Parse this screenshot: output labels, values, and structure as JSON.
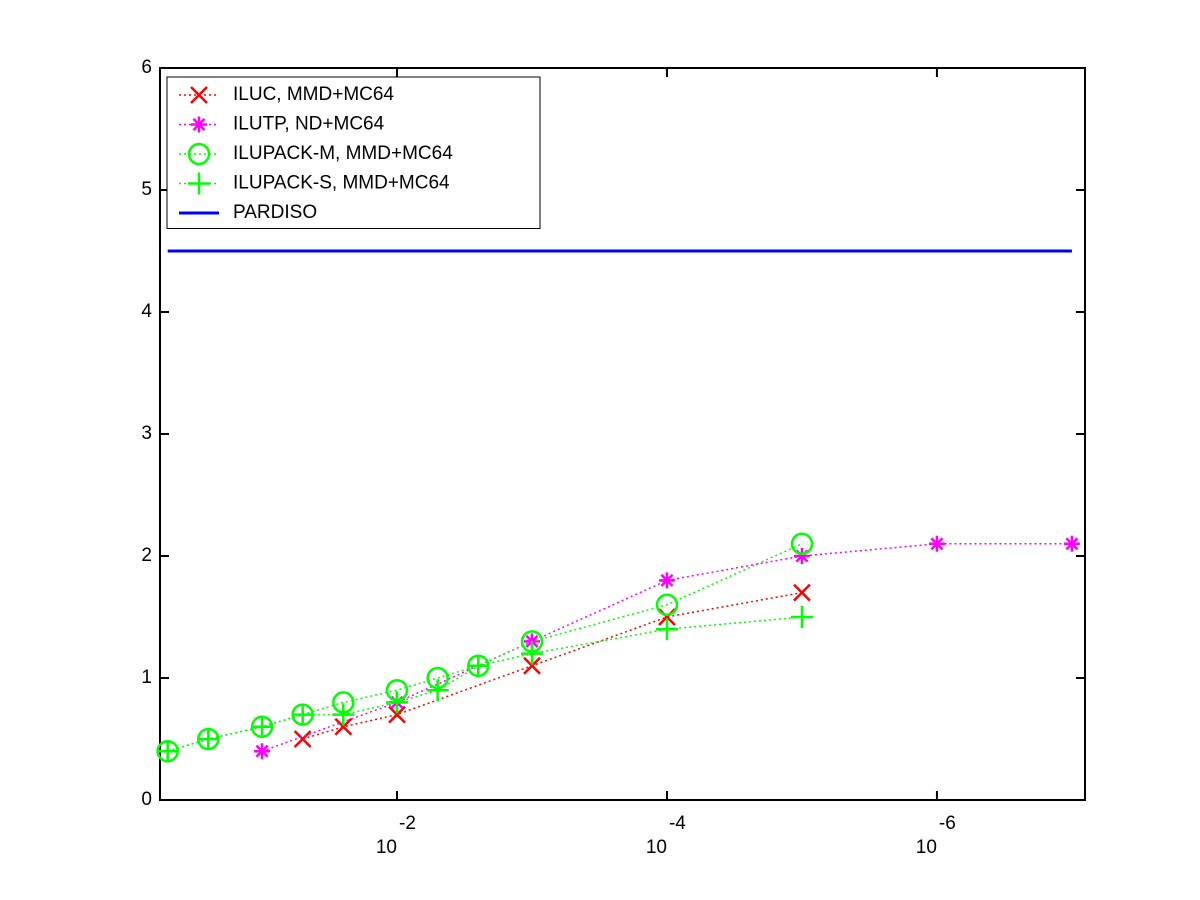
{
  "chart_data": {
    "type": "line",
    "xscale": "log",
    "xreversed": true,
    "xlim": [
      0.57,
      8e-08
    ],
    "xticks": [
      {
        "value": 0.01,
        "label": "10",
        "exponent": "-2"
      },
      {
        "value": 0.0001,
        "label": "10",
        "exponent": "-4"
      },
      {
        "value": 1e-06,
        "label": "10",
        "exponent": "-6"
      }
    ],
    "ylim": [
      0,
      6
    ],
    "yticks": [
      0,
      1,
      2,
      3,
      4,
      5,
      6
    ],
    "legend": "upper left",
    "series": [
      {
        "name": "ILUC, MMD+MC64",
        "color": "#ff0000",
        "marker": "x",
        "linestyle": "dotted",
        "x": [
          0.05,
          0.025,
          0.01,
          0.001,
          0.0001,
          1e-05
        ],
        "values": [
          0.5,
          0.6,
          0.7,
          1.1,
          1.5,
          1.7
        ]
      },
      {
        "name": "ILUTP,  ND+MC64",
        "color": "#ff00ff",
        "marker": "*",
        "linestyle": "dotted",
        "x": [
          0.1,
          0.01,
          0.001,
          0.0001,
          1e-05,
          1e-06,
          1e-07
        ],
        "values": [
          0.4,
          0.8,
          1.3,
          1.8,
          2.0,
          2.1,
          2.1
        ]
      },
      {
        "name": "ILUPACK-M, MMD+MC64",
        "color": "#00ff00",
        "marker": "o",
        "linestyle": "dotted",
        "x": [
          0.5,
          0.25,
          0.1,
          0.05,
          0.025,
          0.01,
          0.005,
          0.0025,
          0.001,
          0.0001,
          1e-05
        ],
        "values": [
          0.4,
          0.5,
          0.6,
          0.7,
          0.8,
          0.9,
          1.0,
          1.1,
          1.3,
          1.6,
          2.1
        ]
      },
      {
        "name": "ILUPACK-S, MMD+MC64",
        "color": "#00ff00",
        "marker": "+",
        "linestyle": "dotted",
        "x": [
          0.5,
          0.25,
          0.1,
          0.05,
          0.025,
          0.01,
          0.005,
          0.0025,
          0.001,
          0.0001,
          1e-05
        ],
        "values": [
          0.4,
          0.5,
          0.6,
          0.7,
          0.7,
          0.8,
          0.9,
          1.1,
          1.2,
          1.4,
          1.5
        ]
      },
      {
        "name": "PARDISO",
        "color": "#0000ff",
        "marker": "none",
        "linestyle": "solid",
        "x": [
          0.5,
          1e-07
        ],
        "values": [
          4.5,
          4.5
        ]
      }
    ]
  }
}
